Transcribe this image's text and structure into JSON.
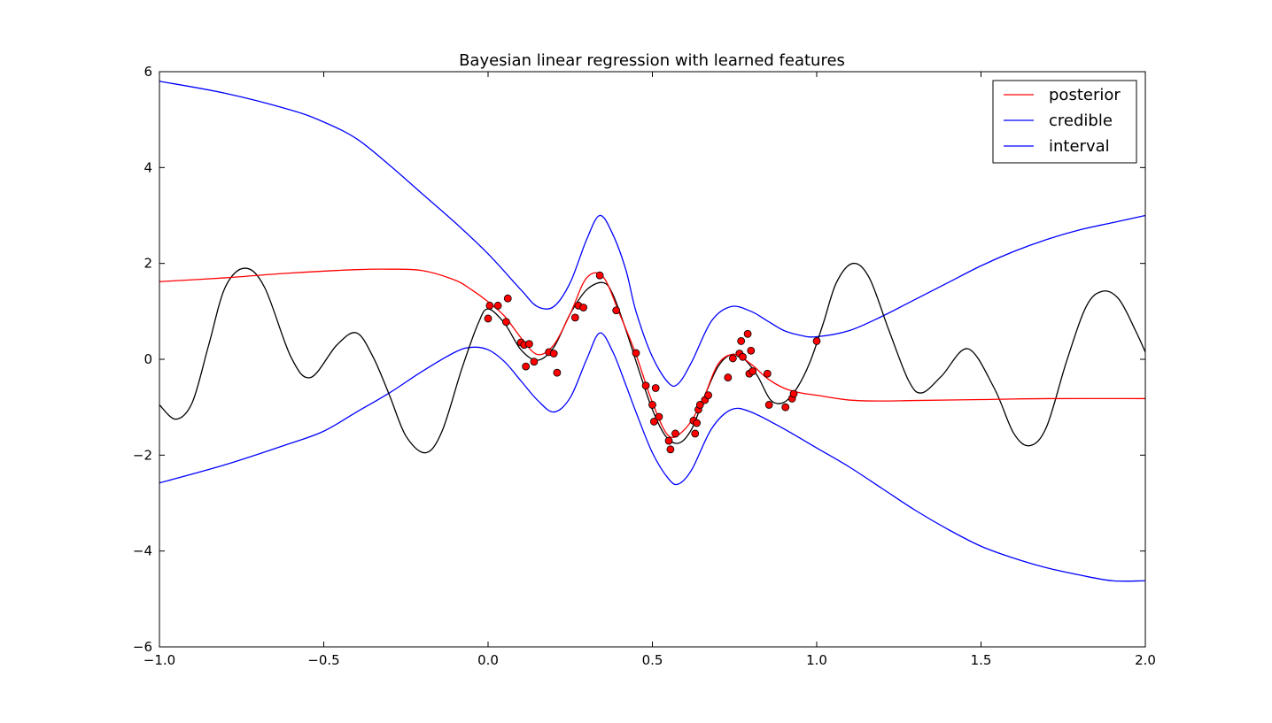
{
  "chart_data": {
    "type": "line",
    "title": "Bayesian linear regression with learned features",
    "xlabel": "",
    "ylabel": "",
    "xlim": [
      -1.0,
      2.0
    ],
    "ylim": [
      -6,
      6
    ],
    "x_ticks": [
      -1.0,
      -0.5,
      0.0,
      0.5,
      1.0,
      1.5,
      2.0
    ],
    "x_tick_labels": [
      "−1.0",
      "−0.5",
      "0.0",
      "0.5",
      "1.0",
      "1.5",
      "2.0"
    ],
    "y_ticks": [
      -6,
      -4,
      -2,
      0,
      2,
      4,
      6
    ],
    "y_tick_labels": [
      "−6",
      "−4",
      "−2",
      "0",
      "2",
      "4",
      "6"
    ],
    "grid": false,
    "legend": {
      "placement": "top-right",
      "entries": [
        {
          "label": "posterior",
          "color": "#ff0000"
        },
        {
          "label": "credible",
          "color": "#0000ff"
        },
        {
          "label": "interval",
          "color": "#0000ff"
        }
      ]
    },
    "series": [
      {
        "name": "posterior",
        "color": "#ff0000",
        "x": [
          -1.0,
          -0.8,
          -0.6,
          -0.4,
          -0.3,
          -0.2,
          -0.1,
          -0.05,
          0.0,
          0.05,
          0.1,
          0.15,
          0.2,
          0.25,
          0.3,
          0.35,
          0.4,
          0.45,
          0.5,
          0.55,
          0.6,
          0.65,
          0.7,
          0.75,
          0.8,
          0.85,
          0.9,
          0.95,
          1.0,
          1.1,
          1.2,
          1.3,
          1.5,
          1.7,
          2.0
        ],
        "y": [
          1.62,
          1.7,
          1.8,
          1.87,
          1.88,
          1.85,
          1.65,
          1.45,
          1.2,
          0.9,
          0.45,
          0.1,
          0.3,
          0.95,
          1.7,
          1.72,
          0.95,
          0.1,
          -0.9,
          -1.6,
          -1.45,
          -0.9,
          -0.1,
          0.1,
          -0.1,
          -0.4,
          -0.6,
          -0.7,
          -0.75,
          -0.85,
          -0.87,
          -0.86,
          -0.84,
          -0.82,
          -0.82
        ]
      },
      {
        "name": "credible",
        "color": "#0000ff",
        "x": [
          -1.0,
          -0.8,
          -0.6,
          -0.5,
          -0.4,
          -0.3,
          -0.2,
          -0.1,
          0.0,
          0.1,
          0.15,
          0.2,
          0.25,
          0.3,
          0.34,
          0.38,
          0.42,
          0.45,
          0.5,
          0.55,
          0.58,
          0.62,
          0.68,
          0.74,
          0.8,
          0.85,
          0.9,
          0.95,
          1.0,
          1.1,
          1.2,
          1.3,
          1.4,
          1.5,
          1.6,
          1.7,
          1.8,
          1.9,
          2.0
        ],
        "y": [
          5.8,
          5.55,
          5.2,
          4.95,
          4.6,
          4.05,
          3.45,
          2.85,
          2.2,
          1.45,
          1.1,
          1.1,
          1.6,
          2.5,
          3.0,
          2.6,
          1.85,
          1.0,
          0.05,
          -0.5,
          -0.5,
          -0.05,
          0.8,
          1.1,
          1.0,
          0.8,
          0.6,
          0.5,
          0.47,
          0.6,
          0.9,
          1.25,
          1.6,
          1.95,
          2.25,
          2.5,
          2.7,
          2.85,
          3.0
        ]
      },
      {
        "name": "interval",
        "color": "#0000ff",
        "x": [
          -1.0,
          -0.8,
          -0.6,
          -0.5,
          -0.4,
          -0.3,
          -0.2,
          -0.1,
          -0.05,
          0.0,
          0.05,
          0.1,
          0.15,
          0.2,
          0.25,
          0.3,
          0.34,
          0.38,
          0.42,
          0.45,
          0.5,
          0.55,
          0.58,
          0.62,
          0.68,
          0.74,
          0.8,
          0.9,
          1.0,
          1.1,
          1.2,
          1.3,
          1.4,
          1.5,
          1.6,
          1.7,
          1.8,
          1.9,
          2.0
        ],
        "y": [
          -2.58,
          -2.2,
          -1.75,
          -1.5,
          -1.1,
          -0.7,
          -0.25,
          0.15,
          0.25,
          0.2,
          -0.05,
          -0.45,
          -0.85,
          -1.1,
          -0.8,
          0.0,
          0.55,
          0.15,
          -0.55,
          -1.1,
          -1.95,
          -2.5,
          -2.6,
          -2.3,
          -1.45,
          -1.05,
          -1.1,
          -1.45,
          -1.85,
          -2.25,
          -2.7,
          -3.15,
          -3.55,
          -3.9,
          -4.15,
          -4.35,
          -4.5,
          -4.62,
          -4.62
        ]
      },
      {
        "name": "",
        "color": "#000000",
        "x": [
          -1.0,
          -0.95,
          -0.9,
          -0.85,
          -0.8,
          -0.74,
          -0.68,
          -0.6,
          -0.54,
          -0.46,
          -0.4,
          -0.35,
          -0.3,
          -0.25,
          -0.19,
          -0.14,
          -0.08,
          -0.03,
          0.0,
          0.05,
          0.1,
          0.15,
          0.2,
          0.25,
          0.3,
          0.35,
          0.38,
          0.42,
          0.46,
          0.5,
          0.54,
          0.58,
          0.62,
          0.66,
          0.7,
          0.74,
          0.78,
          0.82,
          0.86,
          0.9,
          0.94,
          0.98,
          1.02,
          1.06,
          1.11,
          1.16,
          1.22,
          1.28,
          1.32,
          1.38,
          1.46,
          1.54,
          1.6,
          1.65,
          1.7,
          1.76,
          1.82,
          1.87,
          1.92,
          1.97,
          2.0
        ],
        "y": [
          -0.95,
          -1.25,
          -0.9,
          0.3,
          1.5,
          1.9,
          1.5,
          0.05,
          -0.38,
          0.3,
          0.55,
          0.05,
          -0.75,
          -1.6,
          -1.95,
          -1.5,
          -0.2,
          0.75,
          1.05,
          0.75,
          0.2,
          -0.02,
          0.25,
          0.95,
          1.45,
          1.6,
          1.35,
          0.6,
          -0.25,
          -1.05,
          -1.6,
          -1.75,
          -1.45,
          -0.75,
          -0.15,
          0.1,
          0.0,
          -0.35,
          -0.85,
          -0.9,
          -0.6,
          -0.05,
          0.75,
          1.6,
          2.0,
          1.7,
          0.6,
          -0.45,
          -0.7,
          -0.35,
          0.22,
          -0.6,
          -1.55,
          -1.8,
          -1.4,
          -0.05,
          1.1,
          1.42,
          1.25,
          0.6,
          0.15
        ]
      }
    ],
    "points": {
      "color": "#ff0000",
      "x": [
        0.0,
        0.005,
        0.03,
        0.055,
        0.06,
        0.1,
        0.11,
        0.115,
        0.125,
        0.14,
        0.185,
        0.2,
        0.21,
        0.265,
        0.275,
        0.29,
        0.34,
        0.39,
        0.45,
        0.48,
        0.5,
        0.505,
        0.51,
        0.52,
        0.55,
        0.555,
        0.57,
        0.625,
        0.63,
        0.635,
        0.64,
        0.645,
        0.66,
        0.67,
        0.73,
        0.745,
        0.765,
        0.77,
        0.775,
        0.79,
        0.795,
        0.8,
        0.805,
        0.85,
        0.855,
        0.905,
        0.925,
        0.93,
        1.0
      ],
      "y": [
        0.85,
        1.12,
        1.12,
        0.78,
        1.27,
        0.35,
        0.3,
        -0.15,
        0.32,
        -0.05,
        0.15,
        0.12,
        -0.28,
        0.87,
        1.12,
        1.08,
        1.75,
        1.02,
        0.13,
        -0.55,
        -0.95,
        -1.3,
        -0.6,
        -1.2,
        -1.7,
        -1.88,
        -1.55,
        -1.28,
        -1.55,
        -1.33,
        -1.05,
        -0.95,
        -0.85,
        -0.75,
        -0.38,
        0.02,
        0.12,
        0.38,
        0.05,
        0.53,
        -0.3,
        0.18,
        -0.25,
        -0.3,
        -0.95,
        -1.0,
        -0.82,
        -0.72,
        0.38
      ]
    }
  }
}
